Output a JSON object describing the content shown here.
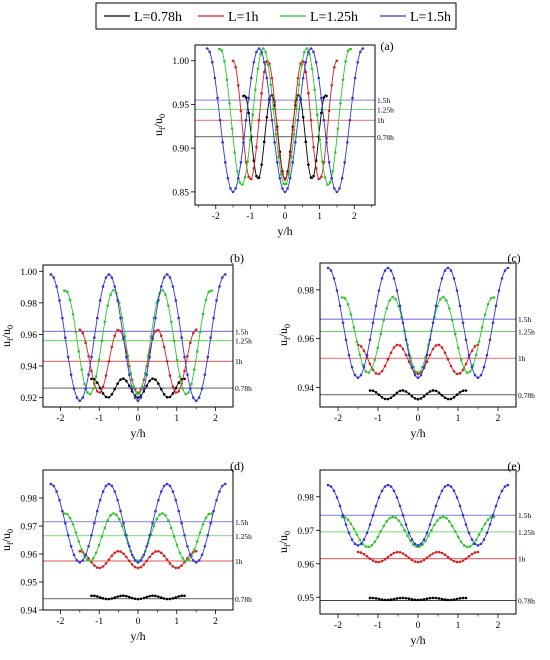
{
  "legend": [
    {
      "label": "L=0.78h",
      "color": "#000000"
    },
    {
      "label": "L=1h",
      "color": "#d61f1f"
    },
    {
      "label": "L=1.25h",
      "color": "#2ec52e"
    },
    {
      "label": "L=1.5h",
      "color": "#3434d8"
    }
  ],
  "chart_data": [
    {
      "panel": "(a)",
      "type": "line",
      "xlabel": "y/h",
      "ylabel": "u_f/u_0",
      "xlim": [
        -2.6,
        2.6
      ],
      "ylim": [
        0.835,
        1.018
      ],
      "xticks": [
        -2,
        -1,
        0,
        1,
        2
      ],
      "yticks": [
        0.85,
        0.9,
        0.95,
        1.0
      ],
      "yticklabels": [
        "0.85",
        "0.90",
        "0.95",
        "1.00"
      ],
      "series": [
        {
          "name": "L=0.78h",
          "color": "#000000",
          "xmax": 1.2,
          "mean": 0.913,
          "amp": 0.048,
          "period": 0.78,
          "ref": 0.913,
          "ref_label": "0.78h"
        },
        {
          "name": "L=1h",
          "color": "#d61f1f",
          "xmax": 1.5,
          "mean": 0.932,
          "amp": 0.068,
          "period": 1.0,
          "ref": 0.932,
          "ref_label": "1h"
        },
        {
          "name": "L=1.25h",
          "color": "#2ec52e",
          "xmax": 1.9,
          "mean": 0.936,
          "amp": 0.078,
          "period": 1.25,
          "ref": 0.944,
          "ref_label": "1.25h"
        },
        {
          "name": "L=1.5h",
          "color": "#3434d8",
          "xmax": 2.25,
          "mean": 0.932,
          "amp": 0.082,
          "period": 1.5,
          "ref": 0.955,
          "ref_label": "1.5h"
        }
      ]
    },
    {
      "panel": "(b)",
      "type": "line",
      "xlabel": "y/h",
      "ylabel": "u_f/u_0",
      "xlim": [
        -2.45,
        2.45
      ],
      "ylim": [
        0.914,
        1.004
      ],
      "xticks": [
        -2,
        -1,
        0,
        1,
        2
      ],
      "yticks": [
        0.92,
        0.94,
        0.96,
        0.98,
        1.0
      ],
      "yticklabels": [
        "0.92",
        "0.94",
        "0.96",
        "0.98",
        "1.00"
      ],
      "series": [
        {
          "name": "L=0.78h",
          "color": "#000000",
          "xmax": 1.2,
          "mean": 0.926,
          "amp": 0.006,
          "period": 0.78,
          "ref": 0.926,
          "ref_label": "0.78h"
        },
        {
          "name": "L=1h",
          "color": "#d61f1f",
          "xmax": 1.5,
          "mean": 0.943,
          "amp": 0.02,
          "period": 1.0,
          "ref": 0.943,
          "ref_label": "1h"
        },
        {
          "name": "L=1.25h",
          "color": "#2ec52e",
          "xmax": 1.9,
          "mean": 0.955,
          "amp": 0.033,
          "period": 1.25,
          "ref": 0.956,
          "ref_label": "1.25h"
        },
        {
          "name": "L=1.5h",
          "color": "#3434d8",
          "xmax": 2.25,
          "mean": 0.958,
          "amp": 0.04,
          "period": 1.5,
          "ref": 0.962,
          "ref_label": "1.5h"
        }
      ]
    },
    {
      "panel": "(c)",
      "type": "line",
      "xlabel": "y/h",
      "ylabel": "u_f/u_0",
      "xlim": [
        -2.45,
        2.45
      ],
      "ylim": [
        0.932,
        0.991
      ],
      "xticks": [
        -2,
        -1,
        0,
        1,
        2
      ],
      "yticks": [
        0.94,
        0.96,
        0.98
      ],
      "yticklabels": [
        "0.94",
        "0.96",
        "0.98"
      ],
      "series": [
        {
          "name": "L=0.78h",
          "color": "#000000",
          "xmax": 1.2,
          "mean": 0.937,
          "amp": 0.0018,
          "period": 0.78,
          "ref": 0.937,
          "ref_label": "0.78h"
        },
        {
          "name": "L=1h",
          "color": "#d61f1f",
          "xmax": 1.5,
          "mean": 0.9515,
          "amp": 0.006,
          "period": 1.0,
          "ref": 0.952,
          "ref_label": "1h"
        },
        {
          "name": "L=1.25h",
          "color": "#2ec52e",
          "xmax": 1.9,
          "mean": 0.9615,
          "amp": 0.0155,
          "period": 1.25,
          "ref": 0.963,
          "ref_label": "1.25h"
        },
        {
          "name": "L=1.5h",
          "color": "#3434d8",
          "xmax": 2.25,
          "mean": 0.9665,
          "amp": 0.0225,
          "period": 1.5,
          "ref": 0.968,
          "ref_label": "1.5h"
        }
      ]
    },
    {
      "panel": "(d)",
      "type": "line",
      "xlabel": "y/h",
      "ylabel": "u_f/u_0",
      "xlim": [
        -2.45,
        2.45
      ],
      "ylim": [
        0.94,
        0.99
      ],
      "xticks": [
        -2,
        -1,
        0,
        1,
        2
      ],
      "yticks": [
        0.94,
        0.95,
        0.96,
        0.97,
        0.98
      ],
      "yticklabels": [
        "0.94",
        "0.95",
        "0.96",
        "0.97",
        "0.98"
      ],
      "series": [
        {
          "name": "L=0.78h",
          "color": "#000000",
          "xmax": 1.2,
          "mean": 0.9445,
          "amp": 0.0006,
          "period": 0.78,
          "ref": 0.944,
          "ref_label": "0.78h"
        },
        {
          "name": "L=1h",
          "color": "#d61f1f",
          "xmax": 1.5,
          "mean": 0.958,
          "amp": 0.003,
          "period": 1.0,
          "ref": 0.9575,
          "ref_label": "1h"
        },
        {
          "name": "L=1.25h",
          "color": "#2ec52e",
          "xmax": 1.9,
          "mean": 0.966,
          "amp": 0.0085,
          "period": 1.25,
          "ref": 0.9665,
          "ref_label": "1.25h"
        },
        {
          "name": "L=1.5h",
          "color": "#3434d8",
          "xmax": 2.25,
          "mean": 0.971,
          "amp": 0.014,
          "period": 1.5,
          "ref": 0.9715,
          "ref_label": "1.5h"
        }
      ]
    },
    {
      "panel": "(e)",
      "type": "line",
      "xlabel": "y/h",
      "ylabel": "u_f/u_0",
      "xlim": [
        -2.45,
        2.45
      ],
      "ylim": [
        0.945,
        0.988
      ],
      "xticks": [
        -2,
        -1,
        0,
        1,
        2
      ],
      "yticks": [
        0.95,
        0.96,
        0.97,
        0.98
      ],
      "yticklabels": [
        "0.95",
        "0.96",
        "0.97",
        "0.98"
      ],
      "series": [
        {
          "name": "L=0.78h",
          "color": "#000000",
          "xmax": 1.2,
          "mean": 0.9495,
          "amp": 0.0003,
          "period": 0.78,
          "ref": 0.949,
          "ref_label": "0.78h"
        },
        {
          "name": "L=1h",
          "color": "#d61f1f",
          "xmax": 1.5,
          "mean": 0.962,
          "amp": 0.0015,
          "period": 1.0,
          "ref": 0.9615,
          "ref_label": "1h"
        },
        {
          "name": "L=1.25h",
          "color": "#2ec52e",
          "xmax": 1.9,
          "mean": 0.9695,
          "amp": 0.0045,
          "period": 1.25,
          "ref": 0.9695,
          "ref_label": "1.25h"
        },
        {
          "name": "L=1.5h",
          "color": "#3434d8",
          "xmax": 2.25,
          "mean": 0.9745,
          "amp": 0.009,
          "period": 1.5,
          "ref": 0.9745,
          "ref_label": "1.5h"
        }
      ]
    }
  ]
}
